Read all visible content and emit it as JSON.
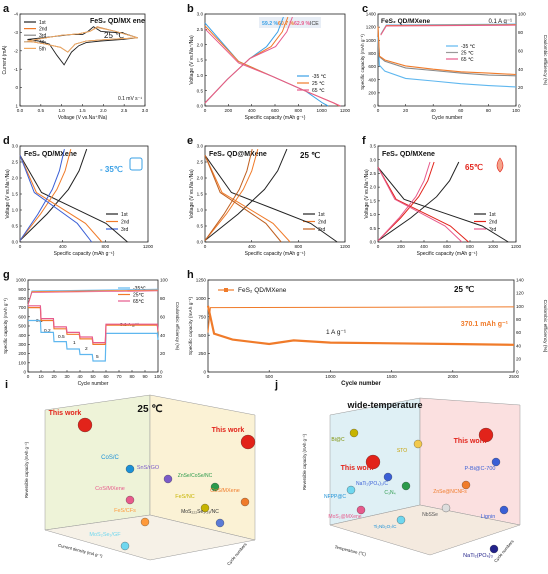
{
  "panels": {
    "a": {
      "letter": "a",
      "title": "FeS₂ QD/MX ene",
      "temp": "25 ℃",
      "xlabel": "Voltage (V vs.Na⁺/Na)",
      "ylabel": "Current (mA)",
      "rate": "0.1 mV s⁻¹",
      "legend": [
        "1st",
        "2nd",
        "3rd",
        "4th",
        "5th"
      ],
      "xticks": [
        "0.0",
        "0.5",
        "1.0",
        "1.5",
        "2.0",
        "2.5",
        "3.0"
      ],
      "yticks": [
        "1",
        "0",
        "-1",
        "-2",
        "-3",
        "-4"
      ]
    },
    "b": {
      "letter": "b",
      "xlabel": "Specific capacity (mAh g⁻¹)",
      "ylabel": "Voltage (V vs.Na⁺/Na)",
      "legend": [
        "-35 ℃",
        "25 ℃",
        "65 ℃"
      ],
      "ice": [
        "59.2 %",
        "60.7 %",
        "62.9 %",
        "ICE"
      ],
      "xticks": [
        "0",
        "200",
        "400",
        "600",
        "800",
        "1000",
        "1200"
      ],
      "yticks": [
        "0.0",
        "0.5",
        "1.0",
        "1.5",
        "2.0",
        "2.5",
        "3.0"
      ]
    },
    "c": {
      "letter": "c",
      "title": "FeS₂ QD/MXene",
      "rate": "0.1 A g⁻¹",
      "xlabel": "Cycle number",
      "ylabel": "Specific capacity (mAh g⁻¹)",
      "y2label": "Coulombic efficiency (%)",
      "legend": [
        "-35 ℃",
        "25 ℃",
        "65 ℃"
      ],
      "xticks": [
        "0",
        "20",
        "40",
        "60",
        "80",
        "100"
      ],
      "yticks": [
        "0",
        "200",
        "400",
        "600",
        "800",
        "1000",
        "1200",
        "1400"
      ],
      "y2ticks": [
        "0",
        "20",
        "40",
        "60",
        "80",
        "100"
      ]
    },
    "d": {
      "letter": "d",
      "title": "FeS₂ QD/MXene",
      "temp": "- 35℃",
      "xlabel": "Specific capacity (mAh g⁻¹)",
      "ylabel": "Voltage (V vs.Na⁺/Na)",
      "legend": [
        "1st",
        "2nd",
        "3rd"
      ],
      "xticks": [
        "0",
        "400",
        "800",
        "1200"
      ],
      "yticks": [
        "0.0",
        "0.5",
        "1.0",
        "1.5",
        "2.0",
        "2.5",
        "3.0"
      ]
    },
    "e": {
      "letter": "e",
      "title": "FeS₂ QD@MXene",
      "temp": "25 ℃",
      "xlabel": "Specific capacity (mAh g⁻¹)",
      "ylabel": "Voltage (V vs.Na⁺/Na)",
      "legend": [
        "1st",
        "2nd",
        "3rd"
      ],
      "xticks": [
        "0",
        "400",
        "800",
        "1200"
      ],
      "yticks": [
        "0.0",
        "0.5",
        "1.0",
        "1.5",
        "2.0",
        "2.5",
        "3.0"
      ]
    },
    "f": {
      "letter": "f",
      "title": "FeS₂ QD/MXene",
      "temp": "65℃",
      "xlabel": "Specific capacity (mAh g⁻¹)",
      "ylabel": "Voltage (V vs.Na⁺/Na)",
      "legend": [
        "1st",
        "2nd",
        "3rd"
      ],
      "xticks": [
        "0",
        "200",
        "400",
        "600",
        "800",
        "1000",
        "1200"
      ],
      "yticks": [
        "0.0",
        "0.5",
        "1.0",
        "1.5",
        "2.0",
        "2.5",
        "3.0",
        "3.5"
      ]
    },
    "g": {
      "letter": "g",
      "xlabel": "Cycle number",
      "ylabel": "Specific capacity (mAh g⁻¹)",
      "y2label": "Coulombic efficiency (%)",
      "legend": [
        "-35℃",
        "25℃",
        "65℃"
      ],
      "rates": [
        "0.1",
        "0.2",
        "0.5",
        "1",
        "2",
        "5",
        "0.1 A g⁻¹"
      ],
      "xticks": [
        "0",
        "10",
        "20",
        "30",
        "40",
        "50",
        "60",
        "70",
        "80",
        "90",
        "100"
      ],
      "yticks": [
        "0",
        "100",
        "200",
        "300",
        "400",
        "500",
        "600",
        "700",
        "800",
        "900",
        "1000"
      ],
      "y2ticks": [
        "0",
        "20",
        "40",
        "60",
        "80",
        "100"
      ]
    },
    "h": {
      "letter": "h",
      "title": "FeS₂ QD/MXene",
      "temp": "25 ℃",
      "rate": "1 A g⁻¹",
      "final": "370.1 mAh g⁻¹",
      "xlabel": "Cycle number",
      "ylabel": "Specific capacity (mAh g⁻¹)",
      "y2label": "Coulombic efficiency (%)",
      "xticks": [
        "0",
        "500",
        "1000",
        "1500",
        "2000",
        "2500"
      ],
      "yticks": [
        "0",
        "250",
        "500",
        "750",
        "1000",
        "1250"
      ],
      "y2ticks": [
        "0",
        "20",
        "40",
        "60",
        "80",
        "100",
        "120",
        "140"
      ]
    },
    "i": {
      "letter": "i",
      "temp": "25 ℃",
      "ylabel": "Reversible capacity (mAh g⁻¹)",
      "xlabel": "Current density (mA g⁻¹)",
      "zlabel": "Cycle numbers",
      "labels": [
        "This work",
        "This work",
        "CoS/C",
        "SnS/rGO",
        "CoS/MXene",
        "ZnSe/CoSe/NC",
        "CoS/MXene",
        "FeS/NC",
        "FeS/CFs",
        "MoS₂₂₂Se₁.₂₉/NC",
        "MoS₂Se₁/GF"
      ]
    },
    "j": {
      "letter": "j",
      "title": "wide-temperature",
      "ylabel": "Reversible capacity (mAh g⁻¹)",
      "xlabel": "Temperature (℃)",
      "zlabel": "Cycle numbers",
      "labels": [
        "This work",
        "This work",
        "P-Bi@C-700",
        "Bi@C",
        "ZnSe@NCNFs",
        "NaTi₂(PO₄)₃/C",
        "NFPP@C",
        "C₃N₄",
        "NbSSe",
        "Lignin",
        "MoS₂@MXene",
        "Ti₂Nb₂O₇/C",
        "NaTi₂(PO₄)₃",
        "STO"
      ]
    }
  },
  "colors": {
    "black": "#222222",
    "orange": "#f07b2a",
    "pink": "#e75a8c",
    "blue": "#3aa0e6",
    "lightblue": "#5fb7ef",
    "red": "#e2231a",
    "grid": "#cccccc"
  },
  "chart_data": [
    {
      "type": "line",
      "panel": "b",
      "title": "",
      "xlabel": "Specific capacity (mAh g⁻¹)",
      "ylabel": "Voltage (V vs.Na⁺/Na)",
      "xlim": [
        0,
        1250
      ],
      "ylim": [
        0,
        3.1
      ],
      "series": [
        {
          "name": "-35 ℃",
          "x": [
            0,
            300,
            600,
            900,
            1050,
            1100
          ],
          "y": [
            2.8,
            1.5,
            1.0,
            0.5,
            0.1,
            0.0
          ]
        },
        {
          "name": "25 ℃",
          "x": [
            0,
            300,
            600,
            900,
            1150,
            1200
          ],
          "y": [
            2.7,
            1.5,
            1.0,
            0.5,
            0.1,
            0.0
          ]
        },
        {
          "name": "65 ℃",
          "x": [
            0,
            300,
            600,
            900,
            1150,
            1210
          ],
          "y": [
            2.6,
            1.45,
            1.0,
            0.5,
            0.1,
            0.0
          ]
        }
      ]
    },
    {
      "type": "line",
      "panel": "c",
      "title": "",
      "xlabel": "Cycle number",
      "ylabel": "Specific capacity (mAh g⁻¹)",
      "xlim": [
        0,
        100
      ],
      "ylim": [
        0,
        1400
      ],
      "series": [
        {
          "name": "-35 ℃",
          "x": [
            0,
            1,
            5,
            20,
            40,
            60,
            80,
            100
          ],
          "y": [
            1050,
            620,
            530,
            420,
            380,
            340,
            310,
            290
          ]
        },
        {
          "name": "25 ℃",
          "x": [
            0,
            1,
            5,
            20,
            40,
            60,
            80,
            100
          ],
          "y": [
            1200,
            750,
            680,
            580,
            540,
            500,
            470,
            460
          ]
        },
        {
          "name": "65 ℃",
          "x": [
            0,
            1,
            5,
            20,
            40,
            60,
            80,
            100
          ],
          "y": [
            1210,
            760,
            700,
            610,
            560,
            520,
            500,
            480
          ]
        }
      ]
    },
    {
      "type": "line",
      "panel": "g",
      "title": "",
      "xlabel": "Cycle number",
      "ylabel": "Specific capacity (mAh g⁻¹)",
      "xlim": [
        0,
        100
      ],
      "ylim": [
        0,
        1000
      ],
      "series": [
        {
          "name": "-35℃",
          "x": [
            0,
            10,
            20,
            30,
            40,
            50,
            60,
            100
          ],
          "y": [
            560,
            430,
            330,
            250,
            190,
            120,
            420,
            350
          ]
        },
        {
          "name": "25℃",
          "x": [
            0,
            10,
            20,
            30,
            40,
            50,
            60,
            100
          ],
          "y": [
            700,
            560,
            470,
            410,
            360,
            300,
            510,
            440
          ]
        },
        {
          "name": "65℃",
          "x": [
            0,
            10,
            20,
            30,
            40,
            50,
            60,
            100
          ],
          "y": [
            720,
            580,
            490,
            430,
            380,
            320,
            520,
            450
          ]
        }
      ]
    },
    {
      "type": "line",
      "panel": "h",
      "title": "",
      "xlabel": "Cycle number",
      "ylabel": "Specific capacity (mAh g⁻¹)",
      "xlim": [
        0,
        2500
      ],
      "ylim": [
        0,
        1250
      ],
      "series": [
        {
          "name": "FeS₂ QD/MXene",
          "x": [
            0,
            50,
            200,
            500,
            700,
            1000,
            1500,
            2000,
            2500
          ],
          "y": [
            900,
            520,
            440,
            380,
            430,
            400,
            390,
            380,
            370.1
          ]
        }
      ]
    }
  ]
}
